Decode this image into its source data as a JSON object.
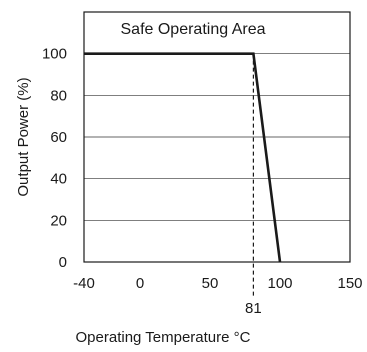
{
  "chart_data": {
    "type": "line",
    "title": "",
    "annotation": "Safe Operating Area",
    "xlabel": "Operating Temperature °C",
    "ylabel": "Output Power (%)",
    "xlim": [
      -40,
      150
    ],
    "ylim": [
      0,
      120
    ],
    "x_ticks": [
      -40,
      0,
      50,
      100,
      150
    ],
    "x_tick_labels": [
      "-40",
      "0",
      "50",
      "100",
      "150"
    ],
    "y_ticks": [
      0,
      20,
      40,
      60,
      80,
      100
    ],
    "y_tick_labels": [
      "0",
      "20",
      "40",
      "60",
      "80",
      "100"
    ],
    "grid": "horizontal",
    "marker": {
      "x": 81,
      "label": "81",
      "style": "dashed"
    },
    "series": [
      {
        "x": [
          -40,
          81,
          100
        ],
        "y": [
          100,
          100,
          0
        ],
        "color": "#1a1a1a"
      }
    ]
  }
}
